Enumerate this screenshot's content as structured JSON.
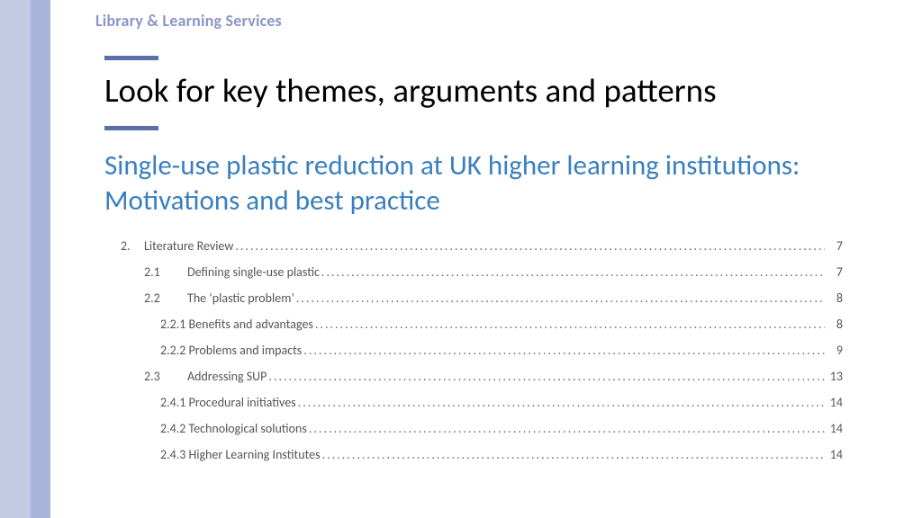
{
  "colors": {
    "sidebar_outer": "#c3cae4",
    "sidebar_inner": "#a9b4da",
    "header_label": "#8a96c8",
    "rule": "#5b6fa8",
    "title": "#000000",
    "subtitle": "#3a7fbf",
    "toc_text": "#555555",
    "background": "#ffffff"
  },
  "header": {
    "label": "Library & Learning Services"
  },
  "title": "Look for key themes, arguments and patterns",
  "subtitle": "Single-use plastic reduction at UK higher learning institutions: Motivations and best practice",
  "toc": [
    {
      "level": 1,
      "num": "2.",
      "text": "Literature Review",
      "page": "7"
    },
    {
      "level": 2,
      "num": "2.1",
      "text": "Defining single-use plastic",
      "page": "7"
    },
    {
      "level": 2,
      "num": "2.2",
      "text": "The ‘plastic problem’",
      "page": "8"
    },
    {
      "level": 3,
      "num": "2.2.1",
      "text": "Benefits and advantages",
      "page": "8"
    },
    {
      "level": 3,
      "num": "2.2.2",
      "text": "Problems and impacts",
      "page": "9"
    },
    {
      "level": 2,
      "num": "2.3",
      "text": "Addressing SUP",
      "page": "13"
    },
    {
      "level": 3,
      "num": "2.4.1",
      "text": "Procedural initiatives",
      "page": "14"
    },
    {
      "level": 3,
      "num": "2.4.2",
      "text": "Technological solutions",
      "page": "14"
    },
    {
      "level": 3,
      "num": "2.4.3",
      "text": "Higher Learning Institutes",
      "page": "14"
    }
  ],
  "typography": {
    "header_fontsize": 18,
    "title_fontsize": 37,
    "subtitle_fontsize": 31,
    "toc_fontsize": 14
  }
}
